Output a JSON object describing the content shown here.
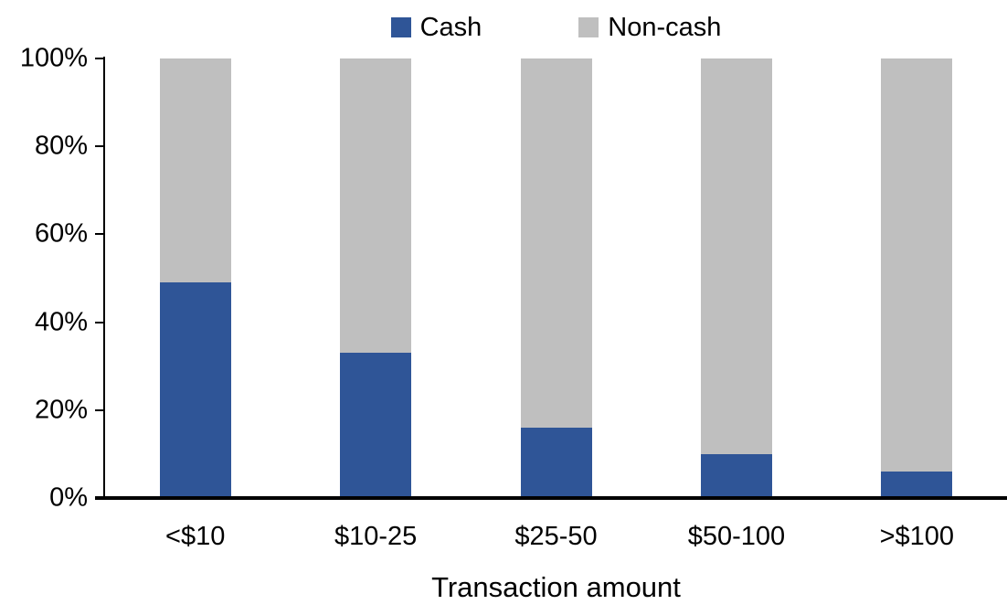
{
  "chart_data": {
    "type": "bar",
    "stacked": true,
    "stacked_to_100_percent": true,
    "title": "",
    "xlabel": "Transaction amount",
    "ylabel": "",
    "ylim": [
      0,
      100
    ],
    "grid": false,
    "legend_position": "top-center",
    "categories": [
      "<$10",
      "$10-25",
      "$25-50",
      "$50-100",
      ">$100"
    ],
    "series": [
      {
        "name": "Cash",
        "color": "#2F5597",
        "values": [
          49,
          33,
          16,
          10,
          6
        ]
      },
      {
        "name": "Non-cash",
        "color": "#BFBFBF",
        "values": [
          51,
          67,
          84,
          90,
          94
        ]
      }
    ],
    "yticks": [
      {
        "label": "0%",
        "value": 0
      },
      {
        "label": "20%",
        "value": 20
      },
      {
        "label": "40%",
        "value": 40
      },
      {
        "label": "60%",
        "value": 60
      },
      {
        "label": "80%",
        "value": 80
      },
      {
        "label": "100%",
        "value": 100
      }
    ]
  },
  "colors": {
    "cash": "#2F5597",
    "noncash": "#BFBFBF",
    "axis": "#000000",
    "background": "#FFFFFF"
  }
}
